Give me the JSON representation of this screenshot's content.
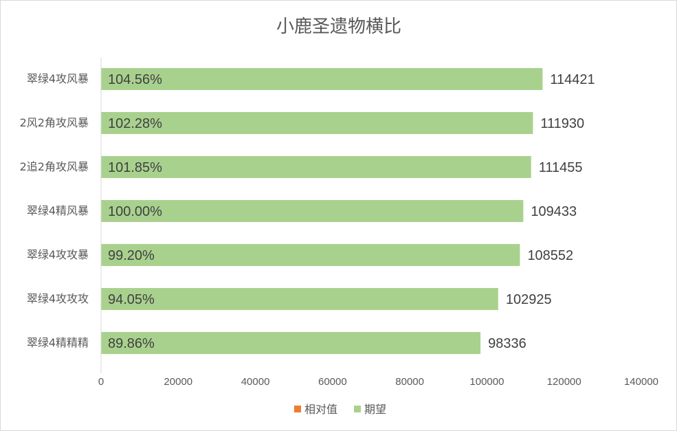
{
  "chart_data": {
    "type": "bar",
    "orientation": "horizontal",
    "title": "小鹿圣遗物横比",
    "categories": [
      "翠绿4攻风暴",
      "2风2角攻风暴",
      "2追2角攻风暴",
      "翠绿4精风暴",
      "翠绿4攻攻暴",
      "翠绿4攻攻攻",
      "翠绿4精精精"
    ],
    "series": [
      {
        "name": "相对值",
        "color": "#ed7d31",
        "values": [
          "104.56%",
          "102.28%",
          "101.85%",
          "100.00%",
          "99.20%",
          "94.05%",
          "89.86%"
        ]
      },
      {
        "name": "期望",
        "color": "#a9d18e",
        "values": [
          114421,
          111930,
          111455,
          109433,
          108552,
          102925,
          98336
        ]
      }
    ],
    "xlim": [
      0,
      140000
    ],
    "xticks": [
      "0",
      "20000",
      "40000",
      "60000",
      "80000",
      "100000",
      "120000",
      "140000"
    ],
    "grid": false,
    "legend_position": "bottom"
  }
}
